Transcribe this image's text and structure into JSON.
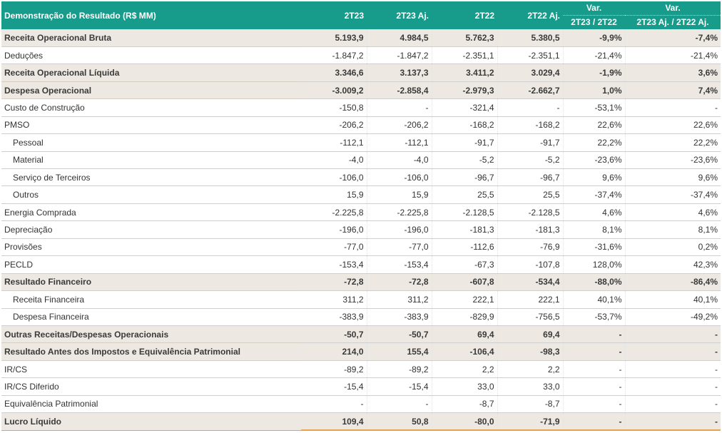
{
  "table": {
    "headers": {
      "label": "Demonstração do Resultado (R$ MM)",
      "c1": "2T23",
      "c2": "2T23 Aj.",
      "c3": "2T22",
      "c4": "2T22 Aj.",
      "c5_top": "Var.",
      "c5_bottom": "2T23 / 2T22",
      "c6_top": "Var.",
      "c6_bottom": "2T23 Aj. / 2T22 Aj."
    },
    "rows": [
      {
        "label": "Receita Operacional Bruta",
        "bold": true,
        "indent": false,
        "v": [
          "5.193,9",
          "4.984,5",
          "5.762,3",
          "5.380,5",
          "-9,9%",
          "-7,4%"
        ]
      },
      {
        "label": "Deduções",
        "bold": false,
        "indent": false,
        "v": [
          "-1.847,2",
          "-1.847,2",
          "-2.351,1",
          "-2.351,1",
          "-21,4%",
          "-21,4%"
        ]
      },
      {
        "label": "Receita Operacional Líquida",
        "bold": true,
        "indent": false,
        "v": [
          "3.346,6",
          "3.137,3",
          "3.411,2",
          "3.029,4",
          "-1,9%",
          "3,6%"
        ]
      },
      {
        "label": "Despesa Operacional",
        "bold": true,
        "indent": false,
        "v": [
          "-3.009,2",
          "-2.858,4",
          "-2.979,3",
          "-2.662,7",
          "1,0%",
          "7,4%"
        ]
      },
      {
        "label": "Custo de Construção",
        "bold": false,
        "indent": false,
        "v": [
          "-150,8",
          "-",
          "-321,4",
          "-",
          "-53,1%",
          "-"
        ]
      },
      {
        "label": "PMSO",
        "bold": false,
        "indent": false,
        "v": [
          "-206,2",
          "-206,2",
          "-168,2",
          "-168,2",
          "22,6%",
          "22,6%"
        ]
      },
      {
        "label": "Pessoal",
        "bold": false,
        "indent": true,
        "v": [
          "-112,1",
          "-112,1",
          "-91,7",
          "-91,7",
          "22,2%",
          "22,2%"
        ]
      },
      {
        "label": "Material",
        "bold": false,
        "indent": true,
        "v": [
          "-4,0",
          "-4,0",
          "-5,2",
          "-5,2",
          "-23,6%",
          "-23,6%"
        ]
      },
      {
        "label": "Serviço de Terceiros",
        "bold": false,
        "indent": true,
        "v": [
          "-106,0",
          "-106,0",
          "-96,7",
          "-96,7",
          "9,6%",
          "9,6%"
        ]
      },
      {
        "label": "Outros",
        "bold": false,
        "indent": true,
        "v": [
          "15,9",
          "15,9",
          "25,5",
          "25,5",
          "-37,4%",
          "-37,4%"
        ]
      },
      {
        "label": "Energia Comprada",
        "bold": false,
        "indent": false,
        "v": [
          "-2.225,8",
          "-2.225,8",
          "-2.128,5",
          "-2.128,5",
          "4,6%",
          "4,6%"
        ]
      },
      {
        "label": "Depreciação",
        "bold": false,
        "indent": false,
        "v": [
          "-196,0",
          "-196,0",
          "-181,3",
          "-181,3",
          "8,1%",
          "8,1%"
        ]
      },
      {
        "label": "Provisões",
        "bold": false,
        "indent": false,
        "v": [
          "-77,0",
          "-77,0",
          "-112,6",
          "-76,9",
          "-31,6%",
          "0,2%"
        ]
      },
      {
        "label": "PECLD",
        "bold": false,
        "indent": false,
        "v": [
          "-153,4",
          "-153,4",
          "-67,3",
          "-107,8",
          "128,0%",
          "42,3%"
        ]
      },
      {
        "label": "Resultado Financeiro",
        "bold": true,
        "indent": false,
        "v": [
          "-72,8",
          "-72,8",
          "-607,8",
          "-534,4",
          "-88,0%",
          "-86,4%"
        ]
      },
      {
        "label": "Receita Financeira",
        "bold": false,
        "indent": true,
        "v": [
          "311,2",
          "311,2",
          "222,1",
          "222,1",
          "40,1%",
          "40,1%"
        ]
      },
      {
        "label": "Despesa Financeira",
        "bold": false,
        "indent": true,
        "v": [
          "-383,9",
          "-383,9",
          "-829,9",
          "-756,5",
          "-53,7%",
          "-49,2%"
        ]
      },
      {
        "label": "Outras Receitas/Despesas Operacionais",
        "bold": true,
        "indent": false,
        "v": [
          "-50,7",
          "-50,7",
          "69,4",
          "69,4",
          "-",
          "-"
        ]
      },
      {
        "label": "Resultado Antes dos Impostos e Equivalência Patrimonial",
        "bold": true,
        "indent": false,
        "v": [
          "214,0",
          "155,4",
          "-106,4",
          "-98,3",
          "-",
          "-"
        ]
      },
      {
        "label": "IR/CS",
        "bold": false,
        "indent": false,
        "v": [
          "-89,2",
          "-89,2",
          "2,2",
          "2,2",
          "-",
          "-"
        ]
      },
      {
        "label": "IR/CS Diferido",
        "bold": false,
        "indent": false,
        "v": [
          "-15,4",
          "-15,4",
          "33,0",
          "33,0",
          "-",
          "-"
        ]
      },
      {
        "label": "Equivalência Patrimonial",
        "bold": false,
        "indent": false,
        "v": [
          "-",
          "-",
          "-8,7",
          "-8,7",
          "-",
          "-"
        ]
      },
      {
        "label": "Lucro Líquido",
        "bold": true,
        "indent": false,
        "v": [
          "109,4",
          "50,8",
          "-80,0",
          "-71,9",
          "-",
          "-"
        ]
      }
    ]
  },
  "colors": {
    "header_bg": "#179c8c",
    "highlight_row_bg": "#ede8e2",
    "bottom_rule": "#e9a24a"
  }
}
